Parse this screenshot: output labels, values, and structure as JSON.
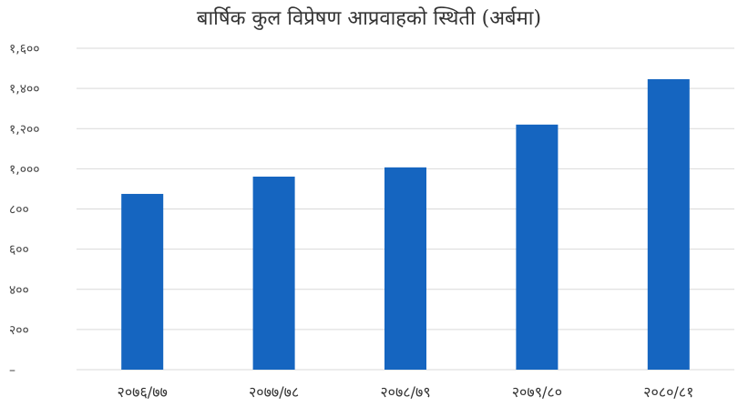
{
  "chart_data": {
    "type": "bar",
    "title": "बार्षिक कुल विप्रेषण आप्रवाहको स्थिती (अर्बमा)",
    "xlabel": "",
    "ylabel": "",
    "categories": [
      "२०७६/७७",
      "२०७७/७८",
      "२०७८/७९",
      "२०७९/८०",
      "२०८०/८१"
    ],
    "values": [
      875,
      961,
      1007,
      1220,
      1446
    ],
    "ylim": [
      0,
      1600
    ],
    "yticks": [
      0,
      200,
      400,
      600,
      800,
      1000,
      1200,
      1400,
      1600
    ],
    "ytick_labels": [
      "–",
      "२००",
      "४००",
      "६००",
      "८००",
      "१,०००",
      "१,२००",
      "१,४००",
      "१,६००"
    ],
    "grid": true,
    "legend": "none",
    "bar_color": "#1565C0",
    "grid_color": "#d9d9d9"
  }
}
